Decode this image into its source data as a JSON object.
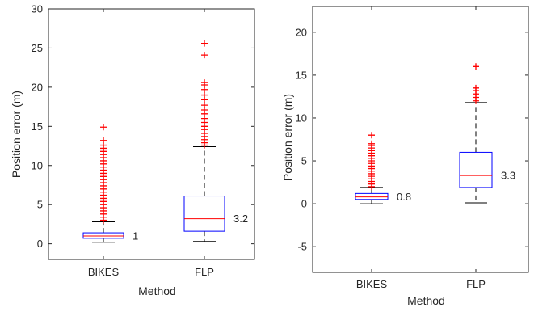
{
  "chart_data": [
    {
      "type": "box",
      "xlabel": "Method",
      "ylabel": "Position error (m)",
      "ylim": [
        -2,
        30
      ],
      "yticks": [
        0,
        5,
        10,
        15,
        20,
        25,
        30
      ],
      "grid": false,
      "categories": [
        "BIKES",
        "FLP"
      ],
      "boxes": [
        {
          "name": "BIKES",
          "whisker_low": 0.2,
          "q1": 0.7,
          "median": 1.0,
          "q3": 1.4,
          "whisker_high": 2.8,
          "outliers": [
            3.0,
            3.4,
            3.8,
            4.2,
            4.6,
            5.0,
            5.4,
            5.8,
            6.2,
            6.6,
            7.0,
            7.4,
            7.8,
            8.2,
            8.6,
            9.0,
            9.4,
            9.8,
            10.2,
            10.6,
            11.0,
            11.4,
            11.8,
            12.2,
            12.6,
            13.2,
            14.9
          ],
          "median_label": "1"
        },
        {
          "name": "FLP",
          "whisker_low": 0.3,
          "q1": 1.6,
          "median": 3.2,
          "q3": 6.1,
          "whisker_high": 12.4,
          "outliers": [
            12.6,
            12.9,
            13.3,
            13.7,
            14.1,
            14.6,
            15.0,
            15.5,
            16.0,
            16.6,
            17.1,
            17.7,
            18.4,
            19.0,
            19.7,
            20.3,
            20.6,
            24.1,
            25.6
          ],
          "median_label": "3.2"
        }
      ]
    },
    {
      "type": "box",
      "xlabel": "Method",
      "ylabel": "Position error (m)",
      "ylim": [
        -8,
        23
      ],
      "yticks": [
        -5,
        0,
        5,
        10,
        15,
        20
      ],
      "grid": false,
      "categories": [
        "BIKES",
        "FLP"
      ],
      "boxes": [
        {
          "name": "BIKES",
          "whisker_low": 0.0,
          "q1": 0.5,
          "median": 0.8,
          "q3": 1.2,
          "whisker_high": 1.9,
          "outliers": [
            2.0,
            2.3,
            2.6,
            2.9,
            3.2,
            3.5,
            3.8,
            4.1,
            4.4,
            4.7,
            5.0,
            5.3,
            5.6,
            5.9,
            6.2,
            6.5,
            6.8,
            7.0,
            8.0
          ],
          "median_label": "0.8"
        },
        {
          "name": "FLP",
          "whisker_low": 0.1,
          "q1": 1.9,
          "median": 3.3,
          "q3": 6.0,
          "whisker_high": 11.8,
          "outliers": [
            12.0,
            12.4,
            12.8,
            13.2,
            13.5,
            16.0
          ],
          "median_label": "3.3"
        }
      ]
    }
  ]
}
